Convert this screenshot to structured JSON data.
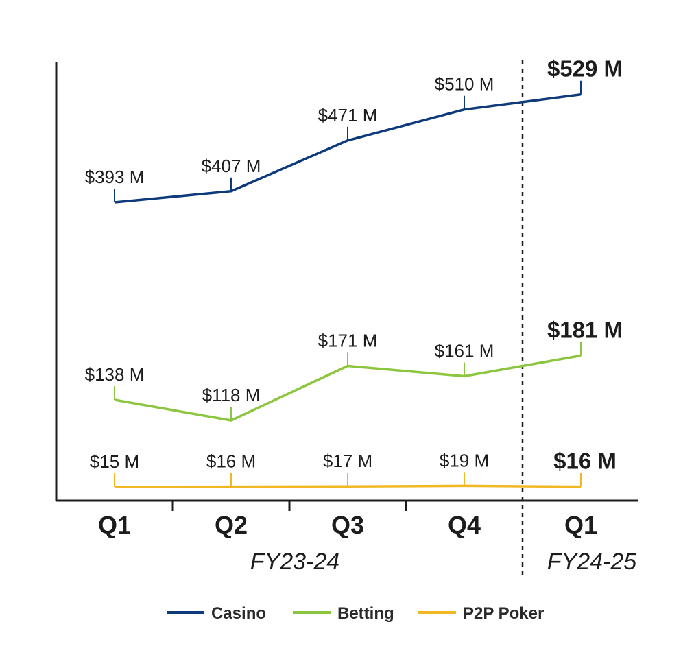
{
  "chart_data": {
    "type": "line",
    "categories": [
      "Q1",
      "Q2",
      "Q3",
      "Q4",
      "Q1"
    ],
    "periods": [
      {
        "label": "FY23-24",
        "from": 0,
        "to": 3
      },
      {
        "label": "FY24-25",
        "from": 4,
        "to": 4
      }
    ],
    "title": "",
    "xlabel": "",
    "ylabel": "",
    "ylim": [
      0,
      560
    ],
    "grid": false,
    "legend": "bottom",
    "divider_after_index": 3,
    "series": [
      {
        "name": "Casino",
        "color": "#0d3a7a",
        "values": [
          393,
          407,
          471,
          510,
          529
        ],
        "labels": [
          "$393 M",
          "$407 M",
          "$471 M",
          "$510 M",
          "$529 M"
        ]
      },
      {
        "name": "Betting",
        "color": "#8cc63f",
        "values": [
          138,
          118,
          171,
          161,
          181
        ],
        "labels": [
          "$138 M",
          "$118 M",
          "$171 M",
          "$161 M",
          "$181 M"
        ]
      },
      {
        "name": "P2P Poker",
        "color": "#f2b823",
        "values": [
          15,
          16,
          17,
          19,
          16
        ],
        "labels": [
          "$15 M",
          "$16 M",
          "$17 M",
          "$19 M",
          "$16 M"
        ]
      }
    ]
  }
}
